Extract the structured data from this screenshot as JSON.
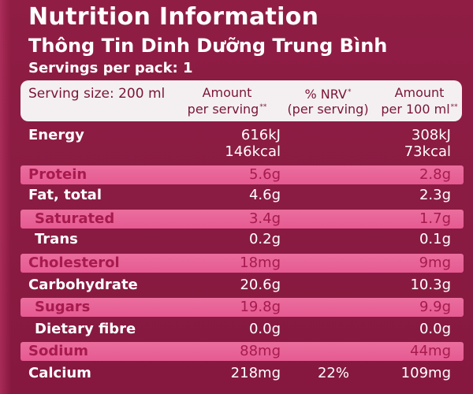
{
  "label": {
    "title": "Nutrition Information",
    "subtitle": "Thông Tin Dinh Dưỡng Trung Bình",
    "servings": "Servings per pack: 1",
    "header": {
      "serving_size": "Serving size: 200 ml",
      "amount_line1": "Amount",
      "amount_line2": "per serving",
      "amount_mark": "**",
      "nrv_line1": "% NRV",
      "nrv_mark": "*",
      "nrv_line2": "(per serving)",
      "amount100_line1": "Amount",
      "amount100_line2": "per 100 ml",
      "amount100_mark": "**"
    },
    "energy": {
      "name": "Energy",
      "kj_serving": "616kJ",
      "kcal_serving": "146kcal",
      "kj_100": "308kJ",
      "kcal_100": "73kcal"
    },
    "rows": [
      {
        "name": "Protein",
        "per_serving": "5.6g",
        "nrv": "",
        "per_100": "2.8g"
      },
      {
        "name": "Fat, total",
        "per_serving": "4.6g",
        "nrv": "",
        "per_100": "2.3g"
      },
      {
        "name": "Saturated",
        "per_serving": "3.4g",
        "nrv": "",
        "per_100": "1.7g"
      },
      {
        "name": "Trans",
        "per_serving": "0.2g",
        "nrv": "",
        "per_100": "0.1g"
      },
      {
        "name": "Cholesterol",
        "per_serving": "18mg",
        "nrv": "",
        "per_100": "9mg"
      },
      {
        "name": "Carbohydrate",
        "per_serving": "20.6g",
        "nrv": "",
        "per_100": "10.3g"
      },
      {
        "name": "Sugars",
        "per_serving": "19.8g",
        "nrv": "",
        "per_100": "9.9g"
      },
      {
        "name": "Dietary fibre",
        "per_serving": "0.0g",
        "nrv": "",
        "per_100": "0.0g"
      },
      {
        "name": "Sodium",
        "per_serving": "88mg",
        "nrv": "",
        "per_100": "44mg"
      },
      {
        "name": "Calcium",
        "per_serving": "218mg",
        "nrv": "22%",
        "per_100": "109mg"
      }
    ]
  }
}
